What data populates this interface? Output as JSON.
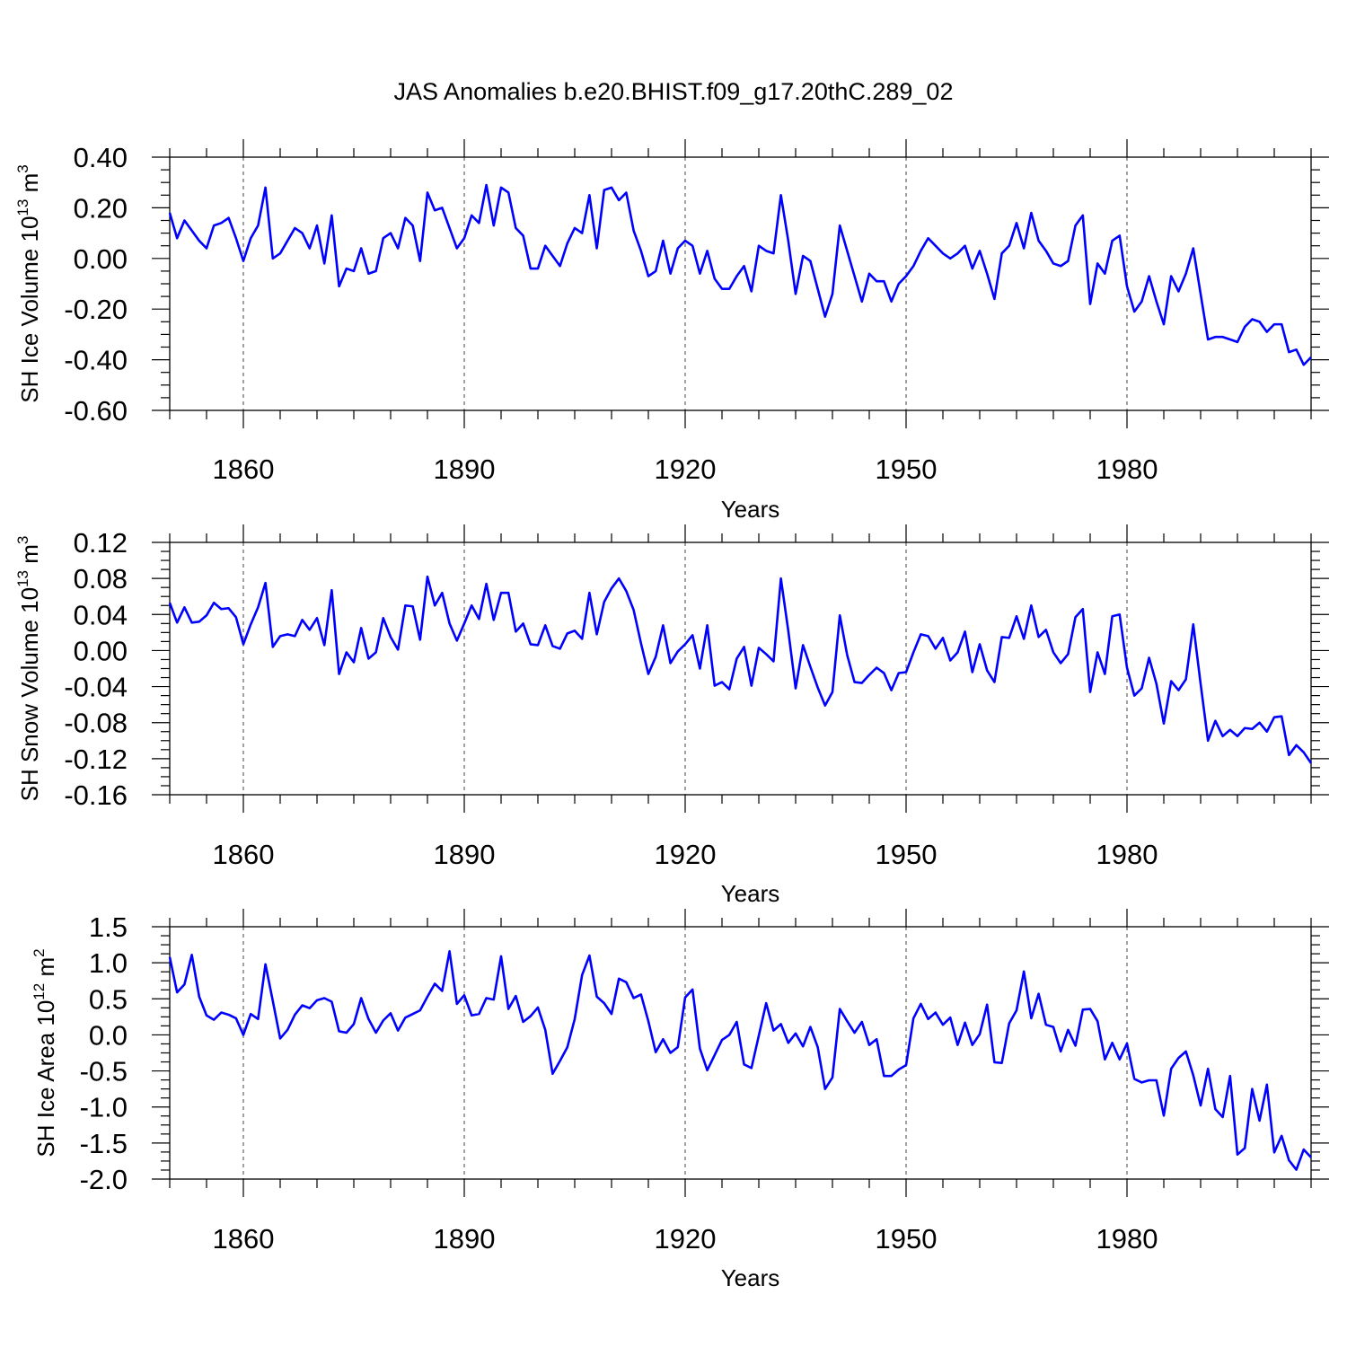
{
  "figure_title": "JAS Anomalies b.e20.BHIST.f09_g17.20thC.289_02",
  "line_color": "#0000ff",
  "chart_data": [
    {
      "type": "line",
      "ylabel": "SH Ice Volume 10",
      "ylabel_exp": "13",
      "ylabel_unit": " m",
      "ylabel_unit_exp": "3",
      "xlabel": "Years",
      "xlim": [
        1850,
        2005
      ],
      "ylim": [
        -0.6,
        0.4
      ],
      "yticks": [
        0.4,
        0.2,
        0.0,
        -0.2,
        -0.4,
        -0.6
      ],
      "ytick_labels": [
        "0.40",
        "0.20",
        "0.00",
        "-0.20",
        "-0.40",
        "-0.60"
      ],
      "xticks": [
        1860,
        1890,
        1920,
        1950,
        1980
      ],
      "xtick_labels": [
        "1860",
        "1890",
        "1920",
        "1950",
        "1980"
      ],
      "x_start": 1850,
      "values": [
        0.18,
        0.08,
        0.15,
        0.11,
        0.07,
        0.04,
        0.13,
        0.14,
        0.16,
        0.08,
        -0.01,
        0.08,
        0.13,
        0.28,
        0.0,
        0.02,
        0.07,
        0.12,
        0.1,
        0.04,
        0.13,
        -0.02,
        0.17,
        -0.11,
        -0.04,
        -0.05,
        0.04,
        -0.06,
        -0.05,
        0.08,
        0.1,
        0.04,
        0.16,
        0.13,
        -0.01,
        0.26,
        0.19,
        0.2,
        0.12,
        0.04,
        0.08,
        0.17,
        0.14,
        0.29,
        0.13,
        0.28,
        0.26,
        0.12,
        0.09,
        -0.04,
        -0.04,
        0.05,
        0.01,
        -0.03,
        0.06,
        0.12,
        0.1,
        0.25,
        0.04,
        0.27,
        0.28,
        0.23,
        0.26,
        0.11,
        0.03,
        -0.07,
        -0.05,
        0.07,
        -0.06,
        0.04,
        0.07,
        0.05,
        -0.06,
        0.03,
        -0.08,
        -0.12,
        -0.12,
        -0.07,
        -0.03,
        -0.13,
        0.05,
        0.03,
        0.02,
        0.25,
        0.07,
        -0.14,
        0.01,
        -0.01,
        -0.12,
        -0.23,
        -0.14,
        0.13,
        0.03,
        -0.07,
        -0.17,
        -0.06,
        -0.09,
        -0.09,
        -0.17,
        -0.1,
        -0.07,
        -0.03,
        0.03,
        0.08,
        0.05,
        0.02,
        0.0,
        0.02,
        0.05,
        -0.04,
        0.03,
        -0.06,
        -0.16,
        0.02,
        0.05,
        0.14,
        0.04,
        0.18,
        0.07,
        0.03,
        -0.02,
        -0.03,
        -0.01,
        0.13,
        0.17,
        -0.18,
        -0.02,
        -0.06,
        0.07,
        0.09,
        -0.11,
        -0.21,
        -0.17,
        -0.07,
        -0.17,
        -0.26,
        -0.07,
        -0.13,
        -0.06,
        0.04,
        -0.14,
        -0.32,
        -0.31,
        -0.31,
        -0.32,
        -0.33,
        -0.27,
        -0.24,
        -0.25,
        -0.29,
        -0.26,
        -0.26,
        -0.37,
        -0.36,
        -0.42,
        -0.39
      ]
    },
    {
      "type": "line",
      "ylabel": "SH Snow Volume 10",
      "ylabel_exp": "13",
      "ylabel_unit": " m",
      "ylabel_unit_exp": "3",
      "xlabel": "Years",
      "xlim": [
        1850,
        2005
      ],
      "ylim": [
        -0.16,
        0.12
      ],
      "yticks": [
        0.12,
        0.08,
        0.04,
        0.0,
        -0.04,
        -0.08,
        -0.12,
        -0.16
      ],
      "ytick_labels": [
        "0.12",
        "0.08",
        "0.04",
        "0.00",
        "-0.04",
        "-0.08",
        "-0.12",
        "-0.16"
      ],
      "xticks": [
        1860,
        1890,
        1920,
        1950,
        1980
      ],
      "xtick_labels": [
        "1860",
        "1890",
        "1920",
        "1950",
        "1980"
      ],
      "x_start": 1850,
      "values": [
        0.053,
        0.031,
        0.048,
        0.031,
        0.032,
        0.039,
        0.053,
        0.046,
        0.047,
        0.037,
        0.007,
        0.029,
        0.048,
        0.075,
        0.004,
        0.016,
        0.018,
        0.016,
        0.034,
        0.023,
        0.036,
        0.006,
        0.067,
        -0.026,
        -0.002,
        -0.013,
        0.025,
        -0.009,
        -0.002,
        0.036,
        0.015,
        0.001,
        0.05,
        0.049,
        0.012,
        0.082,
        0.05,
        0.064,
        0.03,
        0.011,
        0.03,
        0.05,
        0.035,
        0.074,
        0.034,
        0.064,
        0.064,
        0.021,
        0.03,
        0.007,
        0.006,
        0.028,
        0.005,
        0.002,
        0.019,
        0.022,
        0.013,
        0.064,
        0.018,
        0.054,
        0.069,
        0.08,
        0.066,
        0.045,
        0.008,
        -0.026,
        -0.007,
        0.028,
        -0.014,
        -0.001,
        0.007,
        0.017,
        -0.02,
        0.028,
        -0.039,
        -0.035,
        -0.043,
        -0.009,
        0.004,
        -0.039,
        0.003,
        -0.004,
        -0.012,
        0.08,
        0.022,
        -0.042,
        0.006,
        -0.018,
        -0.041,
        -0.061,
        -0.046,
        0.039,
        -0.005,
        -0.035,
        -0.036,
        -0.027,
        -0.019,
        -0.025,
        -0.044,
        -0.025,
        -0.024,
        -0.002,
        0.018,
        0.016,
        0.002,
        0.014,
        -0.011,
        -0.002,
        0.021,
        -0.024,
        0.007,
        -0.022,
        -0.035,
        0.015,
        0.014,
        0.038,
        0.013,
        0.05,
        0.015,
        0.023,
        -0.002,
        -0.014,
        -0.004,
        0.037,
        0.046,
        -0.046,
        -0.002,
        -0.026,
        0.038,
        0.04,
        -0.019,
        -0.05,
        -0.042,
        -0.008,
        -0.037,
        -0.081,
        -0.034,
        -0.044,
        -0.032,
        0.029,
        -0.037,
        -0.1,
        -0.078,
        -0.095,
        -0.088,
        -0.095,
        -0.086,
        -0.087,
        -0.08,
        -0.09,
        -0.074,
        -0.073,
        -0.116,
        -0.105,
        -0.113,
        -0.125
      ]
    },
    {
      "type": "line",
      "ylabel": "SH Ice Area 10",
      "ylabel_exp": "12",
      "ylabel_unit": " m",
      "ylabel_unit_exp": "2",
      "xlabel": "Years",
      "xlim": [
        1850,
        2005
      ],
      "ylim": [
        -2.0,
        1.5
      ],
      "yticks": [
        1.5,
        1.0,
        0.5,
        0.0,
        -0.5,
        -1.0,
        -1.5,
        -2.0
      ],
      "ytick_labels": [
        "1.5",
        "1.0",
        "0.5",
        "0.0",
        "-0.5",
        "-1.0",
        "-1.5",
        "-2.0"
      ],
      "xticks": [
        1860,
        1890,
        1920,
        1950,
        1980
      ],
      "xtick_labels": [
        "1860",
        "1890",
        "1920",
        "1950",
        "1980"
      ],
      "x_start": 1850,
      "values": [
        1.08,
        0.59,
        0.7,
        1.11,
        0.53,
        0.27,
        0.21,
        0.31,
        0.28,
        0.23,
        0.0,
        0.29,
        0.22,
        0.98,
        0.47,
        -0.05,
        0.07,
        0.28,
        0.41,
        0.37,
        0.48,
        0.51,
        0.46,
        0.05,
        0.03,
        0.15,
        0.51,
        0.22,
        0.03,
        0.2,
        0.3,
        0.06,
        0.24,
        0.29,
        0.34,
        0.53,
        0.71,
        0.61,
        1.16,
        0.43,
        0.55,
        0.27,
        0.29,
        0.51,
        0.49,
        1.09,
        0.36,
        0.54,
        0.18,
        0.26,
        0.38,
        0.07,
        -0.54,
        -0.36,
        -0.17,
        0.22,
        0.83,
        1.1,
        0.53,
        0.44,
        0.29,
        0.78,
        0.73,
        0.51,
        0.56,
        0.19,
        -0.24,
        -0.06,
        -0.25,
        -0.17,
        0.52,
        0.63,
        -0.19,
        -0.49,
        -0.28,
        -0.07,
        0.0,
        0.18,
        -0.41,
        -0.46,
        -0.01,
        0.44,
        0.06,
        0.15,
        -0.11,
        0.02,
        -0.16,
        0.11,
        -0.17,
        -0.75,
        -0.59,
        0.36,
        0.19,
        0.03,
        0.18,
        -0.14,
        -0.06,
        -0.57,
        -0.57,
        -0.48,
        -0.42,
        0.23,
        0.43,
        0.22,
        0.31,
        0.14,
        0.24,
        -0.14,
        0.17,
        -0.14,
        0.01,
        0.42,
        -0.38,
        -0.39,
        0.16,
        0.34,
        0.88,
        0.23,
        0.57,
        0.14,
        0.11,
        -0.23,
        0.07,
        -0.15,
        0.35,
        0.36,
        0.19,
        -0.34,
        -0.11,
        -0.34,
        -0.12,
        -0.61,
        -0.66,
        -0.63,
        -0.63,
        -1.12,
        -0.47,
        -0.32,
        -0.23,
        -0.56,
        -0.98,
        -0.47,
        -1.03,
        -1.14,
        -0.57,
        -1.66,
        -1.57,
        -0.75,
        -1.19,
        -0.69,
        -1.63,
        -1.4,
        -1.74,
        -1.87,
        -1.59,
        -1.7
      ]
    }
  ]
}
